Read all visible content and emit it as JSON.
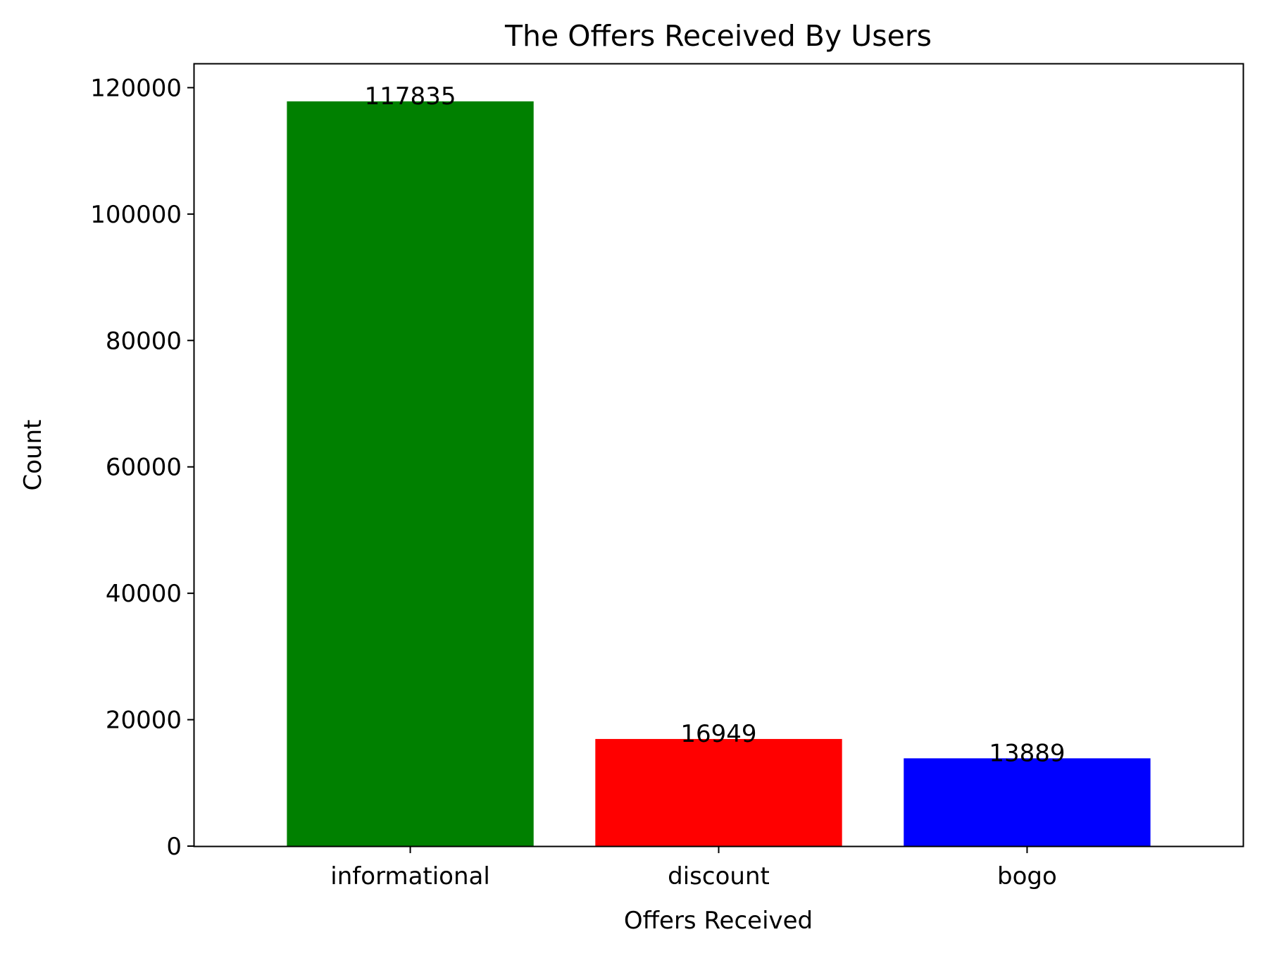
{
  "chart_data": {
    "type": "bar",
    "title": "The Offers Received By Users",
    "xlabel": "Offers Received",
    "ylabel": "Count",
    "categories": [
      "informational",
      "discount",
      "bogo"
    ],
    "values": [
      117835,
      16949,
      13889
    ],
    "value_labels": [
      "117835",
      "16949",
      "13889"
    ],
    "colors": [
      "#008000",
      "#ff0000",
      "#0000ff"
    ],
    "ylim": [
      0,
      123726.75
    ],
    "yticks": [
      0,
      20000,
      40000,
      60000,
      80000,
      100000,
      120000
    ],
    "ytick_labels": [
      "0",
      "20000",
      "40000",
      "60000",
      "80000",
      "100000",
      "120000"
    ],
    "grid": false,
    "legend": "none"
  }
}
